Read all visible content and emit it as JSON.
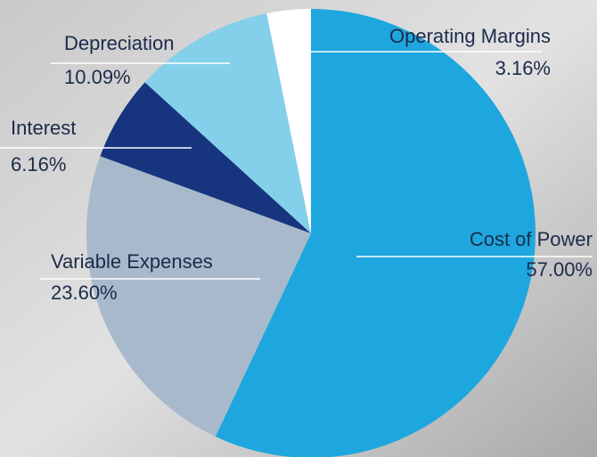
{
  "chart_data": {
    "type": "pie",
    "categories": [
      "Cost of Power",
      "Variable Expenses",
      "Interest",
      "Depreciation",
      "Operating Margins"
    ],
    "values": [
      57.0,
      23.6,
      6.16,
      10.09,
      3.16
    ],
    "value_labels": [
      "57.00%",
      "23.60%",
      "6.16%",
      "10.09%",
      "3.16%"
    ],
    "colors": [
      "#1ea7df",
      "#a7b9cb",
      "#17357f",
      "#84d0ea",
      "#ffffff"
    ]
  }
}
